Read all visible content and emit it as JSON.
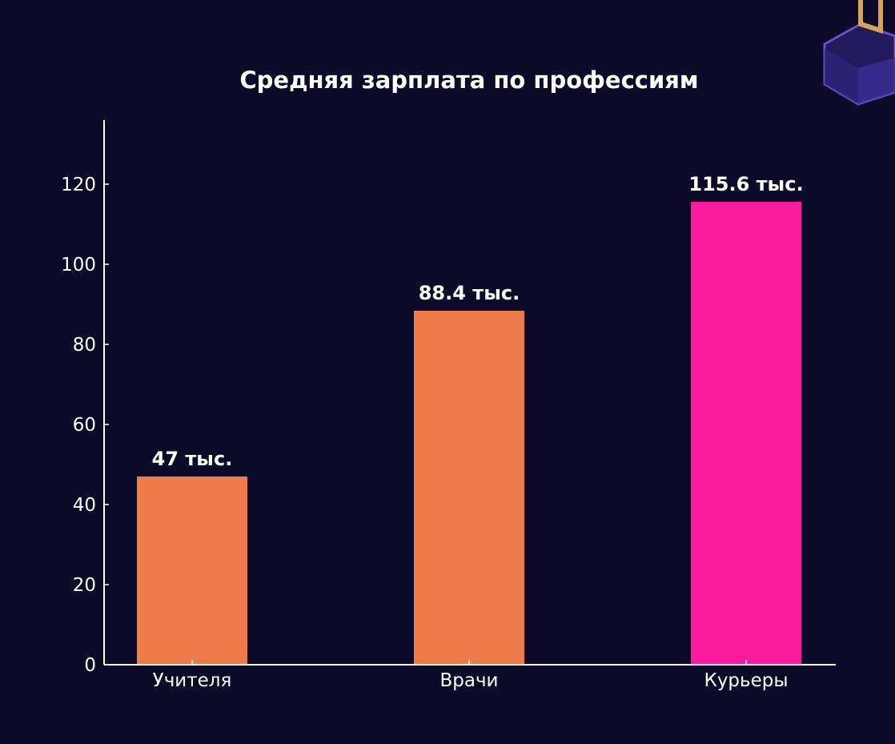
{
  "chart_data": {
    "type": "bar",
    "title": "Средняя зарплата по профессиям",
    "xlabel": "",
    "ylabel": "",
    "categories": [
      "Учителя",
      "Врачи",
      "Курьеры"
    ],
    "values": [
      47,
      88.4,
      115.6
    ],
    "data_labels": [
      "47 тыс.",
      "88.4 тыс.",
      "115.6 тыс."
    ],
    "bar_colors": [
      "#f07b4a",
      "#f07b4a",
      "#fc1a9c"
    ],
    "ylim": [
      0,
      136
    ],
    "y_ticks": [
      0,
      20,
      40,
      60,
      80,
      100,
      120
    ],
    "grid": false,
    "legend": "none"
  },
  "theme": {
    "background": "#0c0a28",
    "text": "#ffffff",
    "logo_colors": [
      "#6a4fc9",
      "#d7a35a"
    ]
  },
  "decor": {
    "logo_icon": "cube-logo-icon"
  }
}
